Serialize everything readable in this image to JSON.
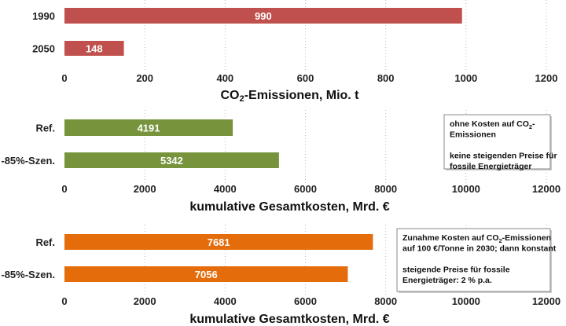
{
  "chart_data": [
    {
      "type": "bar",
      "orientation": "horizontal",
      "categories": [
        "1990",
        "2050"
      ],
      "values": [
        990,
        148
      ],
      "color": "#c0504d",
      "xlabel": "CO2-Emissionen, Mio. t",
      "xlim": [
        0,
        1200
      ],
      "xticks": [
        "0",
        "200",
        "400",
        "600",
        "800",
        "1000",
        "1200"
      ],
      "grid": "vertical dotted",
      "annotation": []
    },
    {
      "type": "bar",
      "orientation": "horizontal",
      "categories": [
        "Ref.",
        "-85%-Szen."
      ],
      "values": [
        4191,
        5342
      ],
      "color": "#77933c",
      "xlabel": "kumulative Gesamtkosten, Mrd. €",
      "xlim": [
        0,
        12000
      ],
      "xticks": [
        "0",
        "2000",
        "4000",
        "6000",
        "8000",
        "10000",
        "12000"
      ],
      "grid": "vertical dotted",
      "annotation": [
        "ohne Kosten auf CO2-",
        "Emissionen",
        "",
        "keine steigenden Preise für",
        "fossile Energieträger"
      ]
    },
    {
      "type": "bar",
      "orientation": "horizontal",
      "categories": [
        "Ref.",
        "-85%-Szen."
      ],
      "values": [
        7681,
        7056
      ],
      "color": "#e46c0a",
      "xlabel": "kumulative Gesamtkosten, Mrd. €",
      "xlim": [
        0,
        12000
      ],
      "xticks": [
        "0",
        "2000",
        "4000",
        "6000",
        "8000",
        "10000",
        "12000"
      ],
      "grid": "vertical dotted",
      "annotation": [
        "Zunahme Kosten auf CO2-Emissionen",
        "auf 100 €/Tonne in 2030; dann konstant",
        "",
        "steigende Preise für fossile",
        "Energieträger: 2 % p.a."
      ]
    }
  ]
}
